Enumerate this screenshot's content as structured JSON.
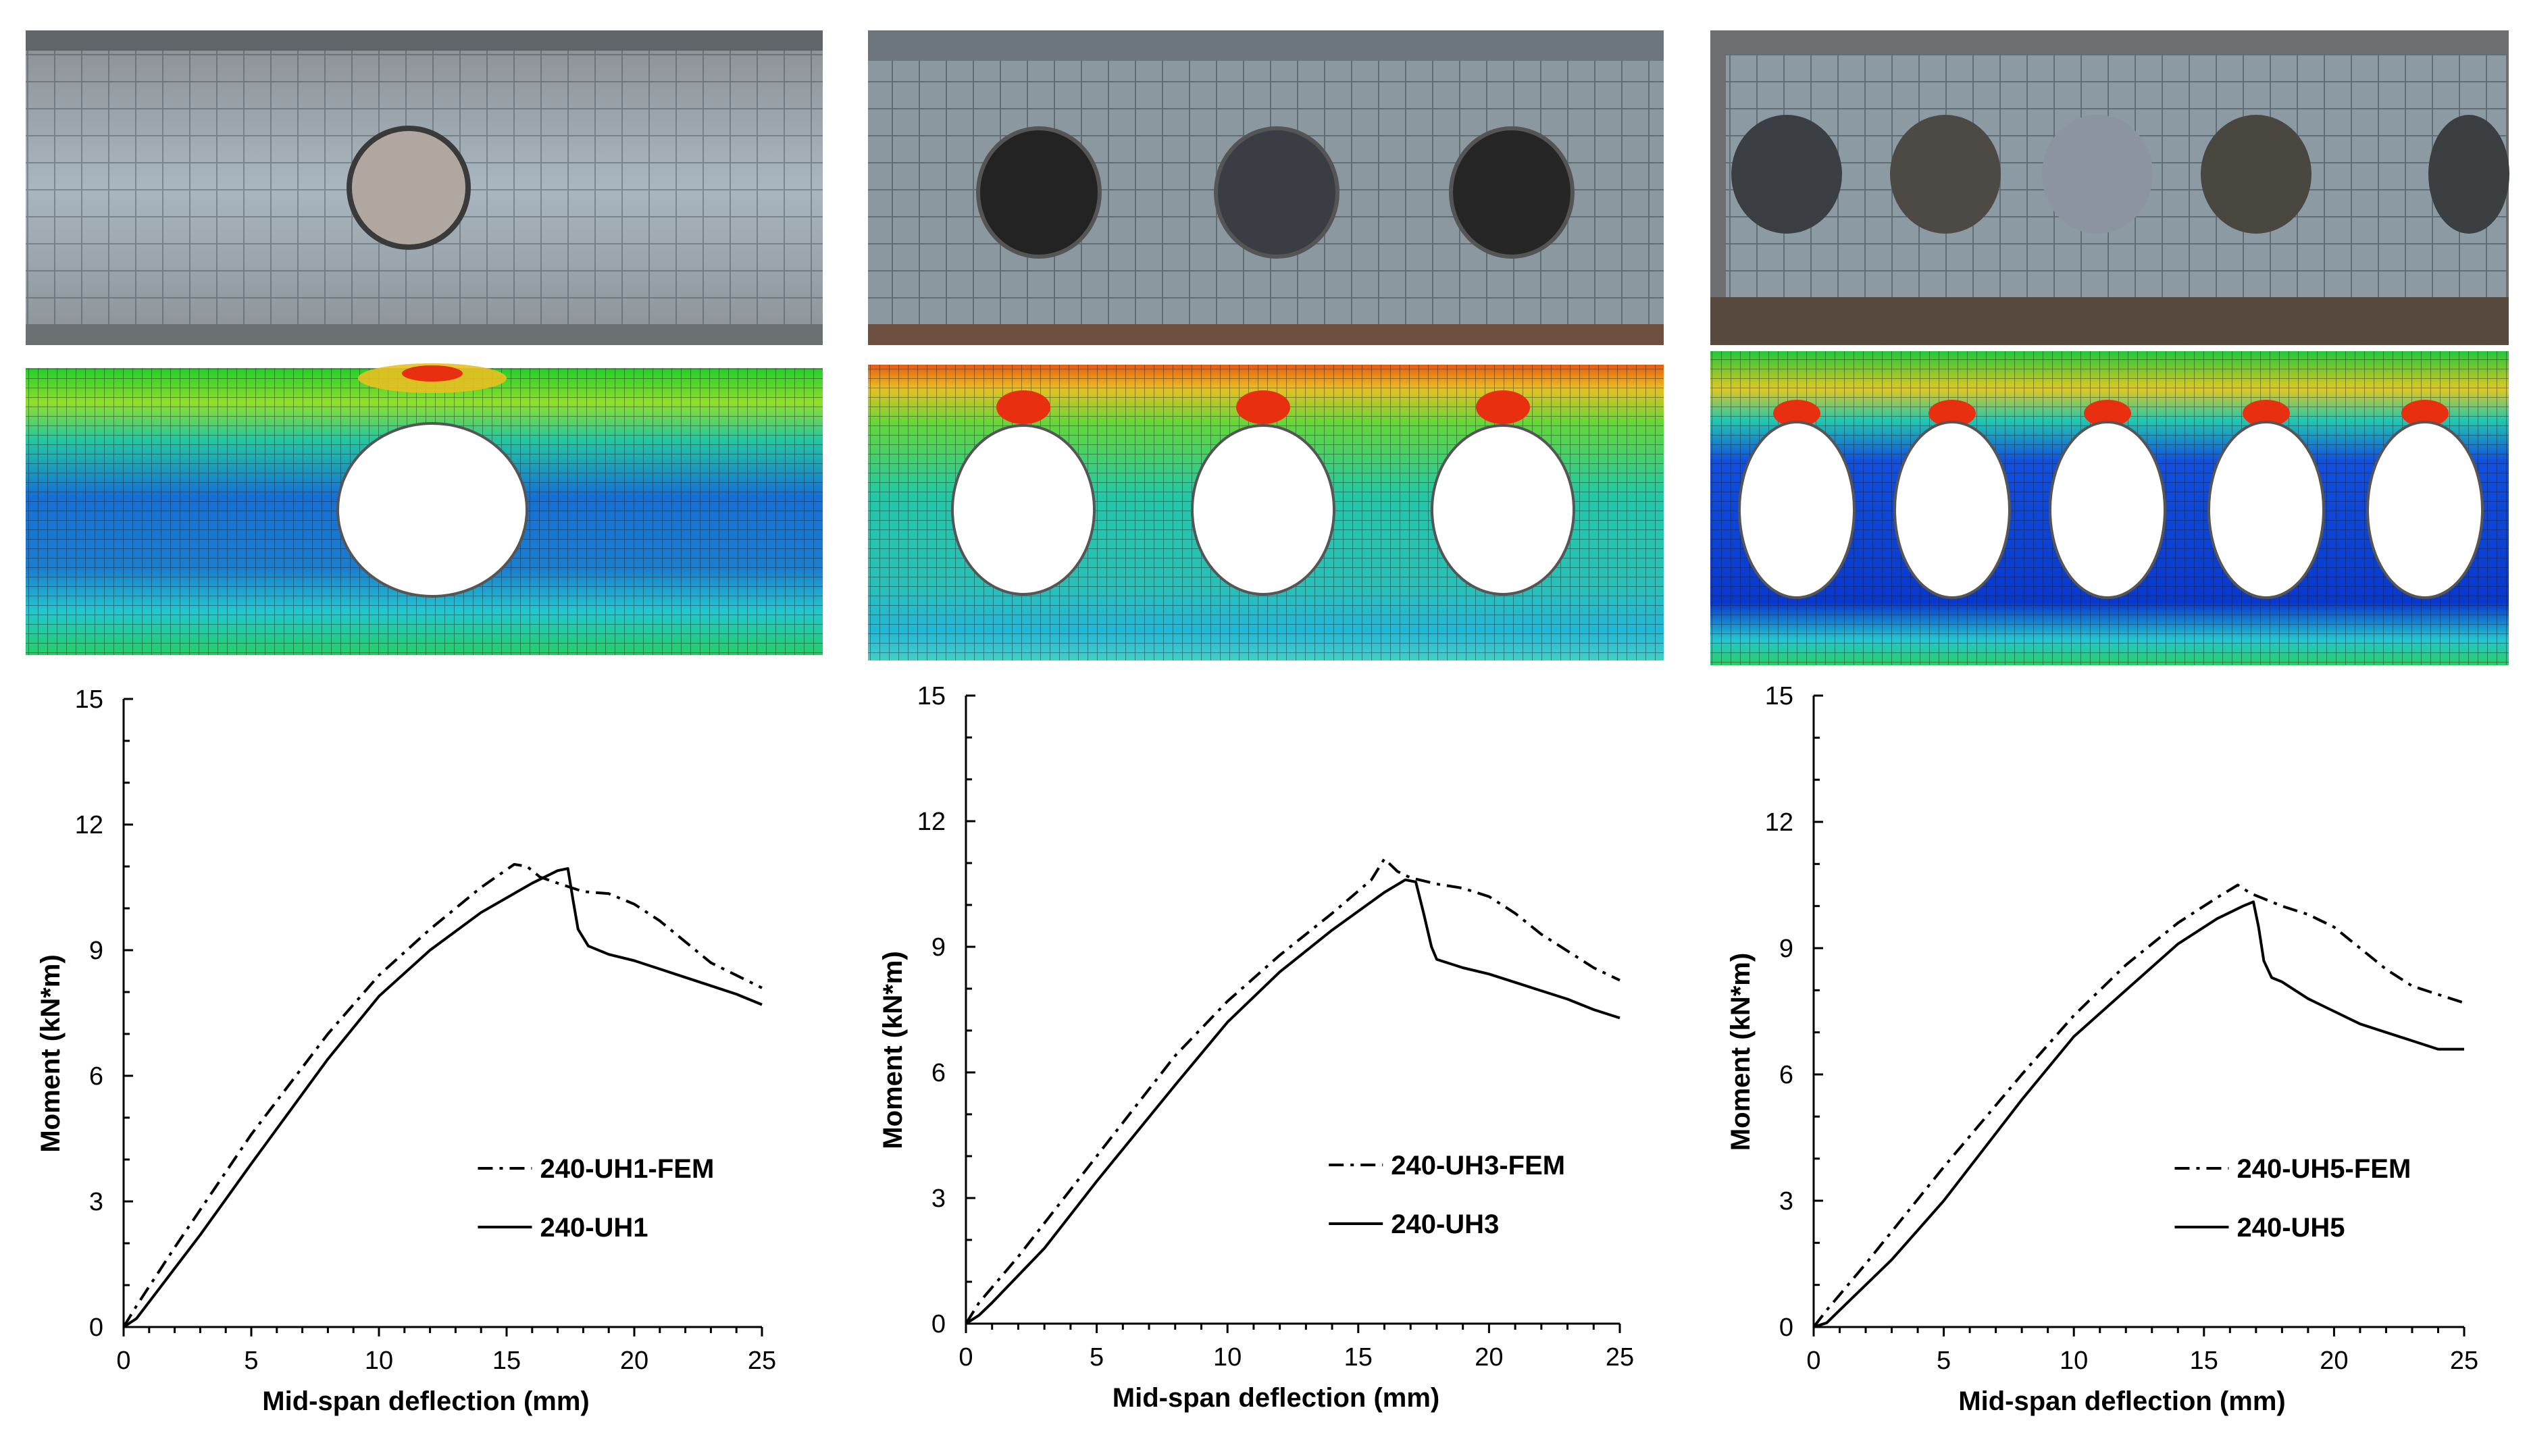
{
  "figure": {
    "panels": [
      {
        "id": "uh1",
        "holes": 1
      },
      {
        "id": "uh3",
        "holes": 3
      },
      {
        "id": "uh5",
        "holes": 5
      }
    ]
  },
  "chart_data": [
    {
      "type": "line",
      "title": "",
      "xlabel": "Mid-span deflection (mm)",
      "ylabel": "Moment (kN*m)",
      "xlim": [
        0,
        25
      ],
      "ylim": [
        0,
        15
      ],
      "xticks": [
        0,
        5,
        10,
        15,
        20,
        25
      ],
      "yticks": [
        0,
        3,
        6,
        9,
        12,
        15
      ],
      "legend_position": "lower-right",
      "series": [
        {
          "name": "240-UH1-FEM",
          "style": "dashdot",
          "x": [
            0,
            0.5,
            2,
            5,
            8,
            10,
            12,
            14,
            15.3,
            15.8,
            16.3,
            17,
            18,
            19,
            20,
            21,
            22,
            23,
            24,
            25
          ],
          "y": [
            0,
            0.5,
            1.9,
            4.6,
            7.0,
            8.4,
            9.5,
            10.5,
            11.05,
            11.0,
            10.75,
            10.6,
            10.4,
            10.35,
            10.1,
            9.7,
            9.2,
            8.7,
            8.4,
            8.1
          ]
        },
        {
          "name": "240-UH1",
          "style": "solid",
          "x": [
            0,
            0.5,
            1,
            3,
            5,
            8,
            10,
            12,
            14,
            16,
            17,
            17.4,
            17.6,
            17.8,
            18.2,
            19,
            20,
            21,
            22,
            23,
            24,
            25
          ],
          "y": [
            0,
            0.2,
            0.6,
            2.2,
            3.9,
            6.4,
            7.9,
            9.0,
            9.9,
            10.6,
            10.9,
            10.95,
            10.2,
            9.5,
            9.1,
            8.9,
            8.75,
            8.55,
            8.35,
            8.15,
            7.95,
            7.7
          ]
        }
      ]
    },
    {
      "type": "line",
      "title": "",
      "xlabel": "Mid-span deflection (mm)",
      "ylabel": "Moment (kN*m)",
      "xlim": [
        0,
        25
      ],
      "ylim": [
        0,
        15
      ],
      "xticks": [
        0,
        5,
        10,
        15,
        20,
        25
      ],
      "yticks": [
        0,
        3,
        6,
        9,
        12,
        15
      ],
      "legend_position": "lower-right",
      "series": [
        {
          "name": "240-UH3-FEM",
          "style": "dashdot",
          "x": [
            0,
            0.5,
            2,
            5,
            8,
            10,
            12,
            14,
            15.5,
            16,
            16.5,
            17,
            18,
            19,
            20,
            21,
            22,
            23,
            24,
            25
          ],
          "y": [
            0,
            0.5,
            1.6,
            4.0,
            6.4,
            7.7,
            8.8,
            9.8,
            10.6,
            11.1,
            10.8,
            10.65,
            10.5,
            10.4,
            10.2,
            9.8,
            9.3,
            8.9,
            8.5,
            8.2
          ]
        },
        {
          "name": "240-UH3",
          "style": "solid",
          "x": [
            0,
            0.5,
            1,
            3,
            5,
            8,
            10,
            12,
            14,
            16,
            16.8,
            17.2,
            17.5,
            17.8,
            18,
            19,
            20,
            21,
            22,
            23,
            24,
            25
          ],
          "y": [
            0,
            0.2,
            0.5,
            1.8,
            3.4,
            5.7,
            7.2,
            8.4,
            9.4,
            10.3,
            10.6,
            10.55,
            9.8,
            9.0,
            8.7,
            8.5,
            8.35,
            8.15,
            7.95,
            7.75,
            7.5,
            7.3
          ]
        }
      ]
    },
    {
      "type": "line",
      "title": "",
      "xlabel": "Mid-span deflection (mm)",
      "ylabel": "Moment (kN*m)",
      "xlim": [
        0,
        25
      ],
      "ylim": [
        0,
        15
      ],
      "xticks": [
        0,
        5,
        10,
        15,
        20,
        25
      ],
      "yticks": [
        0,
        3,
        6,
        9,
        12,
        15
      ],
      "legend_position": "lower-right",
      "series": [
        {
          "name": "240-UH5-FEM",
          "style": "dashdot",
          "x": [
            0,
            0.5,
            2,
            5,
            8,
            10,
            12,
            14,
            15.5,
            16.3,
            16.8,
            17.2,
            18,
            19,
            20,
            21,
            22,
            23,
            24,
            25
          ],
          "y": [
            0,
            0.4,
            1.5,
            3.8,
            6.0,
            7.4,
            8.6,
            9.6,
            10.2,
            10.5,
            10.3,
            10.2,
            10.0,
            9.8,
            9.5,
            9.0,
            8.5,
            8.1,
            7.9,
            7.7
          ]
        },
        {
          "name": "240-UH5",
          "style": "solid",
          "x": [
            0,
            0.5,
            1,
            3,
            5,
            8,
            10,
            12,
            14,
            15.5,
            16.5,
            16.9,
            17.1,
            17.3,
            17.6,
            18,
            19,
            20,
            21,
            22,
            23,
            24,
            25
          ],
          "y": [
            0,
            0.1,
            0.4,
            1.6,
            3.0,
            5.4,
            6.9,
            8.0,
            9.1,
            9.7,
            10.0,
            10.1,
            9.5,
            8.7,
            8.3,
            8.2,
            7.8,
            7.5,
            7.2,
            7.0,
            6.8,
            6.6,
            6.6
          ]
        }
      ]
    }
  ]
}
